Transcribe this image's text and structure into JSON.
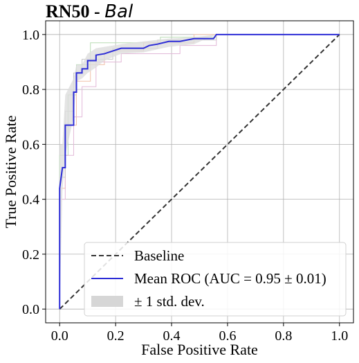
{
  "chart_data": {
    "type": "line",
    "title_prefix": "RN50 - ",
    "title_suffix": "Bal",
    "xlabel": "False Positive Rate",
    "ylabel": "True Positive Rate",
    "xlim": [
      -0.05,
      1.05
    ],
    "ylim": [
      -0.05,
      1.05
    ],
    "grid": true,
    "xticks": [
      0.0,
      0.2,
      0.4,
      0.6,
      0.8,
      1.0
    ],
    "yticks": [
      0.0,
      0.2,
      0.4,
      0.6,
      0.8,
      1.0
    ],
    "xtick_labels": [
      "0.0",
      "0.2",
      "0.4",
      "0.6",
      "0.8",
      "1.0"
    ],
    "ytick_labels": [
      "0.0",
      "0.2",
      "0.4",
      "0.6",
      "0.8",
      "1.0"
    ],
    "legend_position": "lower-right",
    "legend": [
      {
        "label": "Baseline",
        "kind": "dashed-line",
        "color": "#333333"
      },
      {
        "label": "Mean ROC (AUC = 0.95 ± 0.01)",
        "kind": "line",
        "color": "#2b2bd6"
      },
      {
        "label": "± 1 std. dev.",
        "kind": "band",
        "color": "#cccccc"
      }
    ],
    "series": [
      {
        "name": "Baseline",
        "style": "dashed",
        "color": "#333333",
        "x": [
          0.0,
          1.0
        ],
        "y": [
          0.0,
          1.0
        ]
      },
      {
        "name": "Mean ROC",
        "style": "solid",
        "color": "#2b2bd6",
        "x": [
          0.0,
          0.0,
          0.01,
          0.02,
          0.02,
          0.05,
          0.05,
          0.06,
          0.06,
          0.08,
          0.08,
          0.1,
          0.1,
          0.13,
          0.13,
          0.16,
          0.19,
          0.22,
          0.3,
          0.32,
          0.35,
          0.39,
          0.43,
          0.48,
          0.55,
          0.56,
          1.0
        ],
        "y": [
          0.0,
          0.44,
          0.515,
          0.515,
          0.67,
          0.67,
          0.79,
          0.79,
          0.86,
          0.86,
          0.875,
          0.875,
          0.905,
          0.905,
          0.925,
          0.93,
          0.94,
          0.95,
          0.95,
          0.96,
          0.965,
          0.975,
          0.975,
          0.985,
          0.985,
          1.0,
          1.0
        ]
      }
    ],
    "band": {
      "x": [
        0.0,
        0.01,
        0.02,
        0.05,
        0.06,
        0.08,
        0.1,
        0.13,
        0.16,
        0.22,
        0.3,
        0.39,
        0.48,
        0.56,
        1.0
      ],
      "upper": [
        0.6,
        0.6,
        0.78,
        0.84,
        0.89,
        0.89,
        0.93,
        0.95,
        0.955,
        0.965,
        0.975,
        0.985,
        0.99,
        1.0,
        1.0
      ],
      "lower": [
        0.0,
        0.43,
        0.56,
        0.7,
        0.83,
        0.84,
        0.86,
        0.88,
        0.905,
        0.93,
        0.935,
        0.955,
        0.965,
        1.0,
        1.0
      ],
      "color": "#dddddd"
    },
    "fold_curves": [
      {
        "color": "#b8dcb4",
        "x": [
          0.0,
          0.0,
          0.03,
          0.03,
          0.06,
          0.06,
          0.11,
          0.11,
          0.22,
          0.22,
          0.36,
          0.36,
          0.56,
          0.56,
          1.0
        ],
        "y": [
          0.0,
          0.56,
          0.56,
          0.78,
          0.78,
          0.89,
          0.89,
          0.97,
          0.97,
          0.97,
          0.97,
          0.99,
          0.99,
          1.0,
          1.0
        ]
      },
      {
        "color": "#f0c0a8",
        "x": [
          0.0,
          0.0,
          0.02,
          0.02,
          0.06,
          0.06,
          0.11,
          0.11,
          0.16,
          0.16,
          0.3,
          0.3,
          0.48,
          0.48,
          1.0
        ],
        "y": [
          0.0,
          0.44,
          0.44,
          0.67,
          0.67,
          0.83,
          0.83,
          0.89,
          0.89,
          0.94,
          0.94,
          0.97,
          0.97,
          1.0,
          1.0
        ]
      },
      {
        "color": "#e2b8d8",
        "x": [
          0.0,
          0.0,
          0.02,
          0.02,
          0.05,
          0.05,
          0.08,
          0.08,
          0.13,
          0.13,
          0.22,
          0.22,
          0.43,
          0.43,
          0.56,
          0.56,
          1.0
        ],
        "y": [
          0.0,
          0.4,
          0.4,
          0.56,
          0.56,
          0.7,
          0.7,
          0.81,
          0.81,
          0.9,
          0.9,
          0.93,
          0.93,
          0.96,
          0.96,
          1.0,
          1.0
        ]
      },
      {
        "color": "#c8c8c8",
        "x": [
          0.0,
          0.0,
          0.02,
          0.02,
          0.05,
          0.05,
          0.08,
          0.08,
          0.19,
          0.19,
          0.35,
          0.35,
          0.56,
          0.56,
          1.0
        ],
        "y": [
          0.0,
          0.48,
          0.48,
          0.72,
          0.72,
          0.86,
          0.86,
          0.91,
          0.91,
          0.95,
          0.95,
          0.98,
          0.98,
          1.0,
          1.0
        ]
      }
    ]
  }
}
